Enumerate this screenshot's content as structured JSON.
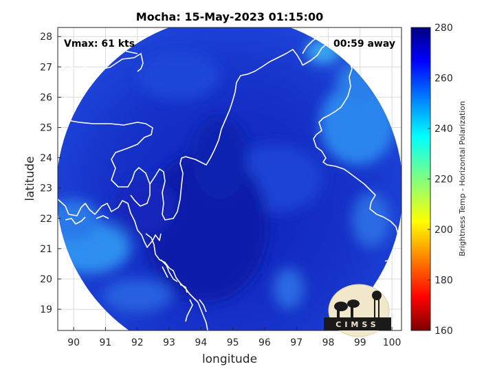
{
  "title": "Mocha: 15-May-2023 01:15:00",
  "xlabel": "longitude",
  "ylabel": "latitude",
  "vmax_text": "Vmax: 61 kts",
  "away_text": "00:59 away",
  "colorbar": {
    "label": "Brightness Temp - Horizontal Polarization",
    "min": 160,
    "max": 280,
    "ticks": [
      "280",
      "260",
      "240",
      "220",
      "200",
      "180",
      "160"
    ],
    "colormap": "jet"
  },
  "logo_text": "CIMSS",
  "chart_data": {
    "type": "heatmap",
    "title": "Mocha: 15-May-2023 01:15:00",
    "xlabel": "longitude",
    "ylabel": "latitude",
    "xlim": [
      89.5,
      100.3
    ],
    "ylim": [
      18.3,
      28.3
    ],
    "x_ticks": [
      90,
      91,
      92,
      93,
      94,
      95,
      96,
      97,
      98,
      99,
      100
    ],
    "y_ticks": [
      19,
      20,
      21,
      22,
      23,
      24,
      25,
      26,
      27,
      28
    ],
    "x_tick_labels": [
      "90",
      "91",
      "92",
      "93",
      "94",
      "95",
      "96",
      "97",
      "98",
      "99",
      "100"
    ],
    "y_tick_labels": [
      "19",
      "20",
      "21",
      "22",
      "23",
      "24",
      "25",
      "26",
      "27",
      "28"
    ],
    "grid": true,
    "colors": {
      "background_field": "#1d3ad2",
      "warm_region": "#0d1fb0",
      "cool_region": "#2b8ff0",
      "coastline": "#ffffff"
    }
  }
}
